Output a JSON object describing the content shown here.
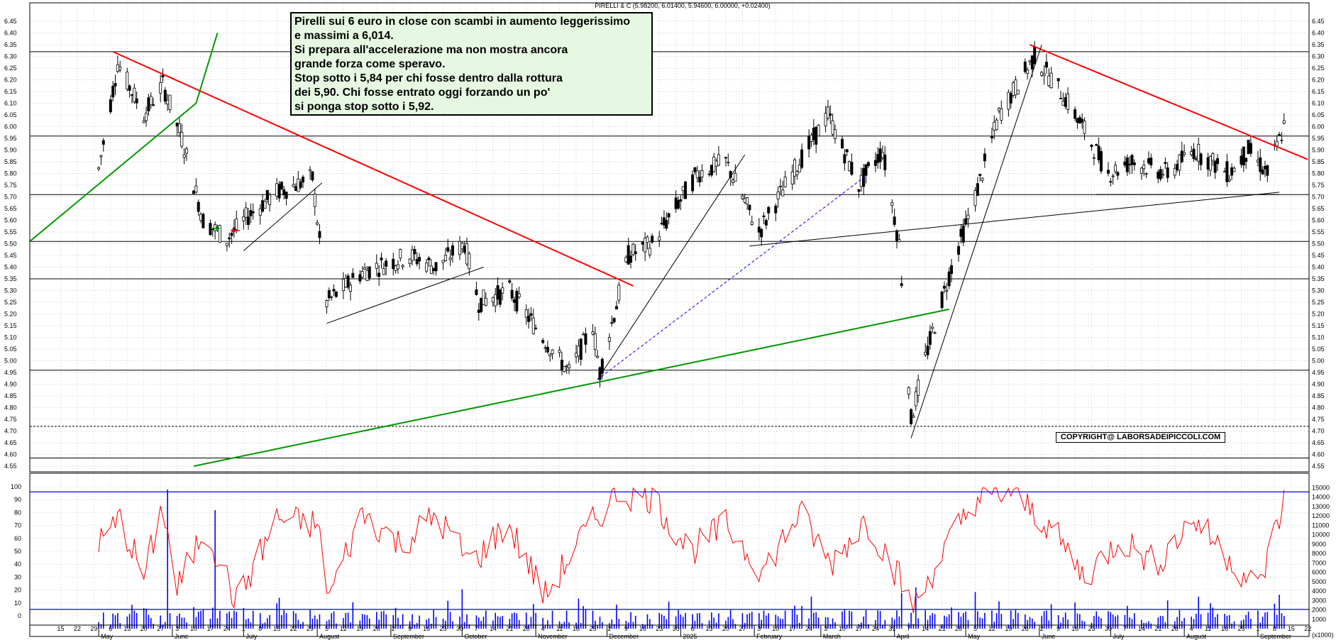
{
  "header": {
    "title": "PIRELLI & C (5.98200, 6.01400, 5.94600, 6.00000, +0.02400)"
  },
  "note": {
    "lines": [
      "Pirelli sui 6 euro in close con scambi in aumento leggerissimo",
      "e massimi a 6,014.",
      "Si prepara all'accelerazione ma non mostra ancora",
      "grande forza come speravo.",
      "Stop sotto i 5,84 per chi fosse dentro dalla rottura",
      "dei 5,90. Chi fosse entrato oggi forzando un po'",
      "si ponga stop sotto i 5,92."
    ]
  },
  "copyright": "COPYRIGHT@ LABORSADEIPICCOLI.COM",
  "colors": {
    "red_line": "#ff0000",
    "green_line": "#009900",
    "blue_line": "#0000ff",
    "black_line": "#000000",
    "note_bg": "#e6f7e2",
    "volume_bars": "#0000ff",
    "oscillator": "#ff0000"
  },
  "chart_data": [
    {
      "type": "candlestick",
      "title": "PIRELLI & C (5.98200, 6.01400, 5.94600, 6.00000, +0.02400)",
      "ylim": [
        4.55,
        6.45
      ],
      "y_ticks": [
        "6.45",
        "6.40",
        "6.35",
        "6.30",
        "6.25",
        "6.20",
        "6.15",
        "6.10",
        "6.05",
        "6.00",
        "5.95",
        "5.90",
        "5.85",
        "5.80",
        "5.75",
        "5.70",
        "5.65",
        "5.60",
        "5.55",
        "5.50",
        "5.45",
        "5.40",
        "5.35",
        "5.30",
        "5.25",
        "5.20",
        "5.15",
        "5.10",
        "5.05",
        "5.00",
        "4.95",
        "4.90",
        "4.85",
        "4.80",
        "4.75",
        "4.70",
        "4.65",
        "4.60",
        "4.55"
      ],
      "last_bar": {
        "open": 5.982,
        "high": 6.014,
        "low": 5.946,
        "close": 6.0,
        "change": 0.024
      },
      "horizontal_levels": [
        6.32,
        5.96,
        5.71,
        5.51,
        5.35,
        4.96,
        4.72,
        4.585
      ],
      "price_path": [
        [
          "2024-05-01",
          5.82
        ],
        [
          "2024-05-09",
          6.27
        ],
        [
          "2024-05-20",
          6.05
        ],
        [
          "2024-05-28",
          6.18
        ],
        [
          "2024-06-05",
          5.95
        ],
        [
          "2024-06-14",
          5.6
        ],
        [
          "2024-06-24",
          5.52
        ],
        [
          "2024-07-03",
          5.62
        ],
        [
          "2024-07-15",
          5.72
        ],
        [
          "2024-07-30",
          5.78
        ],
        [
          "2024-08-05",
          5.25
        ],
        [
          "2024-08-20",
          5.38
        ],
        [
          "2024-09-09",
          5.45
        ],
        [
          "2024-09-20",
          5.4
        ],
        [
          "2024-10-02",
          5.5
        ],
        [
          "2024-10-08",
          5.25
        ],
        [
          "2024-10-21",
          5.3
        ],
        [
          "2024-11-04",
          5.1
        ],
        [
          "2024-11-15",
          4.95
        ],
        [
          "2024-11-25",
          5.15
        ],
        [
          "2024-11-28",
          4.95
        ],
        [
          "2024-12-10",
          5.45
        ],
        [
          "2024-12-20",
          5.5
        ],
        [
          "2025-01-08",
          5.8
        ],
        [
          "2025-01-20",
          5.85
        ],
        [
          "2025-02-03",
          5.55
        ],
        [
          "2025-02-17",
          5.8
        ],
        [
          "2025-03-04",
          6.05
        ],
        [
          "2025-03-17",
          5.75
        ],
        [
          "2025-03-27",
          5.9
        ],
        [
          "2025-04-03",
          5.5
        ],
        [
          "2025-04-08",
          4.75
        ],
        [
          "2025-04-15",
          5.05
        ],
        [
          "2025-04-25",
          5.4
        ],
        [
          "2025-05-05",
          5.7
        ],
        [
          "2025-05-15",
          6.05
        ],
        [
          "2025-05-30",
          6.3
        ],
        [
          "2025-06-10",
          6.15
        ],
        [
          "2025-06-18",
          6.02
        ],
        [
          "2025-06-30",
          5.8
        ],
        [
          "2025-07-10",
          5.85
        ],
        [
          "2025-07-25",
          5.8
        ],
        [
          "2025-08-05",
          5.9
        ],
        [
          "2025-08-20",
          5.8
        ],
        [
          "2025-08-28",
          5.9
        ],
        [
          "2025-09-05",
          5.8
        ],
        [
          "2025-09-12",
          6.0
        ]
      ],
      "trendlines": [
        {
          "color": "red",
          "from": [
            "2024-05-07",
            6.32
          ],
          "to": [
            "2024-12-12",
            5.32
          ]
        },
        {
          "color": "red",
          "from": [
            "2025-05-28",
            6.35
          ],
          "to": [
            "2025-09-22",
            5.86
          ]
        },
        {
          "color": "green",
          "from": [
            "2024-04-02",
            5.51
          ],
          "to": [
            "2024-06-11",
            6.1
          ]
        },
        {
          "color": "green",
          "from": [
            "2024-06-11",
            6.1
          ],
          "to": [
            "2024-06-20",
            6.4
          ]
        },
        {
          "color": "green",
          "from": [
            "2024-06-10",
            4.55
          ],
          "to": [
            "2025-04-24",
            5.22
          ]
        },
        {
          "color": "blue-dashed",
          "from": [
            "2024-11-27",
            4.92
          ],
          "to": [
            "2025-03-20",
            5.79
          ]
        },
        {
          "color": "black",
          "from": [
            "2024-11-27",
            4.92
          ],
          "to": [
            "2025-01-28",
            5.88
          ]
        },
        {
          "color": "black",
          "from": [
            "2025-04-08",
            4.67
          ],
          "to": [
            "2025-06-02",
            6.35
          ]
        },
        {
          "color": "black",
          "from": [
            "2024-07-01",
            5.47
          ],
          "to": [
            "2024-08-03",
            5.76
          ]
        },
        {
          "color": "black",
          "from": [
            "2024-08-05",
            5.16
          ],
          "to": [
            "2024-10-10",
            5.4
          ]
        },
        {
          "color": "black",
          "from": [
            "2025-01-30",
            5.49
          ],
          "to": [
            "2025-09-10",
            5.72
          ]
        },
        {
          "color": "black",
          "from": [
            "2025-06-25",
            5.71
          ],
          "to": [
            "2025-09-10",
            5.71
          ]
        }
      ]
    },
    {
      "type": "line",
      "name": "oscillator",
      "ylim": [
        0,
        100
      ],
      "left_ticks": [
        "100",
        "90",
        "80",
        "70",
        "60",
        "50",
        "40",
        "30",
        "20",
        "10",
        "0"
      ],
      "reference_levels": [
        96,
        5
      ],
      "path": [
        [
          "2024-05-01",
          55
        ],
        [
          "2024-05-10",
          75
        ],
        [
          "2024-05-20",
          30
        ],
        [
          "2024-05-28",
          85
        ],
        [
          "2024-06-03",
          20
        ],
        [
          "2024-06-15",
          70
        ],
        [
          "2024-06-28",
          10
        ],
        [
          "2024-07-15",
          75
        ],
        [
          "2024-08-01",
          70
        ],
        [
          "2024-08-06",
          15
        ],
        [
          "2024-08-20",
          80
        ],
        [
          "2024-09-05",
          55
        ],
        [
          "2024-09-20",
          78
        ],
        [
          "2024-10-05",
          40
        ],
        [
          "2024-10-20",
          72
        ],
        [
          "2024-11-05",
          15
        ],
        [
          "2024-11-20",
          60
        ],
        [
          "2024-12-05",
          95
        ],
        [
          "2024-12-20",
          92
        ],
        [
          "2025-01-05",
          50
        ],
        [
          "2025-01-20",
          70
        ],
        [
          "2025-02-05",
          35
        ],
        [
          "2025-02-20",
          80
        ],
        [
          "2025-03-05",
          40
        ],
        [
          "2025-03-20",
          75
        ],
        [
          "2025-04-03",
          30
        ],
        [
          "2025-04-09",
          5
        ],
        [
          "2025-04-20",
          45
        ],
        [
          "2025-05-05",
          90
        ],
        [
          "2025-05-20",
          96
        ],
        [
          "2025-06-05",
          70
        ],
        [
          "2025-06-20",
          30
        ],
        [
          "2025-07-05",
          60
        ],
        [
          "2025-07-20",
          40
        ],
        [
          "2025-08-05",
          75
        ],
        [
          "2025-08-20",
          45
        ],
        [
          "2025-09-01",
          20
        ],
        [
          "2025-09-12",
          88
        ]
      ]
    },
    {
      "type": "bar",
      "name": "volume",
      "ylim": [
        0,
        15000
      ],
      "right_ticks": [
        "15000",
        "14000",
        "13000",
        "12000",
        "11000",
        "10000",
        "9000",
        "8000",
        "7000",
        "6000",
        "5000",
        "4000",
        "3000",
        "2000",
        "1000"
      ],
      "unit_label": "(x1000)",
      "spikes": [
        [
          "2024-05-30",
          14800
        ],
        [
          "2024-06-01",
          7500
        ],
        [
          "2024-06-19",
          12600
        ],
        [
          "2024-10-01",
          4200
        ],
        [
          "2024-11-19",
          3200
        ],
        [
          "2025-04-04",
          3800
        ],
        [
          "2025-04-10",
          4400
        ],
        [
          "2025-05-05",
          3900
        ],
        [
          "2025-08-07",
          3400
        ],
        [
          "2025-09-10",
          3600
        ]
      ]
    }
  ],
  "x_axis": {
    "day_ticks": [
      "15",
      "22",
      "29",
      "6",
      "13",
      "20",
      "27",
      "3",
      "10",
      "17",
      "24",
      "1",
      "8",
      "15",
      "22",
      "29",
      "5",
      "12",
      "19",
      "26",
      "2",
      "9",
      "16",
      "23",
      "30",
      "7",
      "14",
      "21",
      "28",
      "4",
      "11",
      "18",
      "25",
      "2",
      "9",
      "16",
      "23",
      "30",
      "6",
      "13",
      "20",
      "27",
      "3",
      "10",
      "17",
      "24",
      "3",
      "10",
      "17",
      "24",
      "31",
      "7",
      "14",
      "21",
      "28",
      "5",
      "12",
      "19",
      "26",
      "2",
      "9",
      "16",
      "23",
      "30",
      "7",
      "14",
      "21",
      "28",
      "4",
      "11",
      "18",
      "25",
      "1",
      "8",
      "15",
      "22"
    ],
    "month_labels": [
      "May",
      "June",
      "July",
      "August",
      "September",
      "October",
      "November",
      "December",
      "2025",
      "February",
      "March",
      "April",
      "May",
      "June",
      "July",
      "August",
      "September"
    ]
  }
}
